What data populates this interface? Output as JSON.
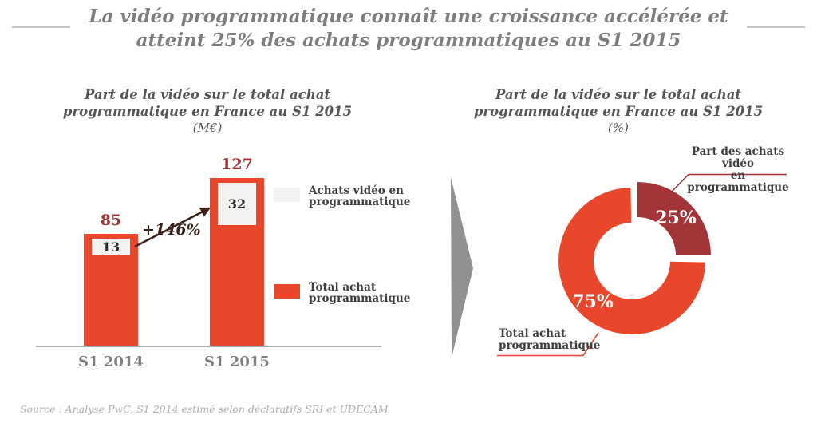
{
  "slide": {
    "title_line1": "La vidéo programmatique connaît une croissance accélérée et",
    "title_line2": "atteint 25% des achats programmatiques au S1 2015",
    "source": "Source : Analyse PwC, S1 2014 estimé selon déclaratifs SRI et UDECAM"
  },
  "colors": {
    "orange": "#e8472b",
    "dark_red": "#a33437",
    "segment_box": "#f3f2f0",
    "mid_arrow_gray": "#919191",
    "growth_arrow": "#40241a"
  },
  "left_chart": {
    "title_line1": "Part de la vidéo sur le total achat",
    "title_line2": "programmatique en France au S1 2015",
    "unit": "(M€)",
    "growth_label": "+146%"
  },
  "right_chart": {
    "title_line1": "Part de la vidéo sur le total achat",
    "title_line2": "programmatique en France au S1 2015",
    "unit": "(%)",
    "callout_video_line1": "Part des achats vidéo",
    "callout_video_line2": "en programmatique",
    "callout_total_line1": "Total achat",
    "callout_total_line2": "programmatique"
  },
  "legend": {
    "items": [
      {
        "label_line1": "Achats vidéo en",
        "label_line2": "programmatique",
        "color": "#f3f2f0"
      },
      {
        "label_line1": "Total achat",
        "label_line2": "programmatique",
        "color": "#e8472b"
      }
    ]
  },
  "chart_data": [
    {
      "type": "bar",
      "title": "Part de la vidéo sur le total achat programmatique en France au S1 2015",
      "ylabel": "M€",
      "categories": [
        "S1 2014",
        "S1 2015"
      ],
      "series": [
        {
          "name": "Achats vidéo en programmatique",
          "values": [
            13,
            32
          ]
        },
        {
          "name": "Total achat programmatique",
          "values": [
            85,
            127
          ]
        }
      ],
      "totals": [
        85,
        127
      ],
      "video_values": [
        13,
        32
      ],
      "growth": "+146%",
      "ylim": [
        0,
        140
      ],
      "grid": false,
      "legend_position": "right"
    },
    {
      "type": "pie",
      "donut": true,
      "title": "Part de la vidéo sur le total achat programmatique en France au S1 2015",
      "ylabel": "%",
      "slices": [
        {
          "label": "Part des achats vidéo en programmatique",
          "value": 25,
          "display": "25%",
          "color": "#a33437",
          "exploded": true
        },
        {
          "label": "Total achat programmatique",
          "value": 75,
          "display": "75%",
          "color": "#e8472b",
          "exploded": false
        }
      ]
    }
  ]
}
